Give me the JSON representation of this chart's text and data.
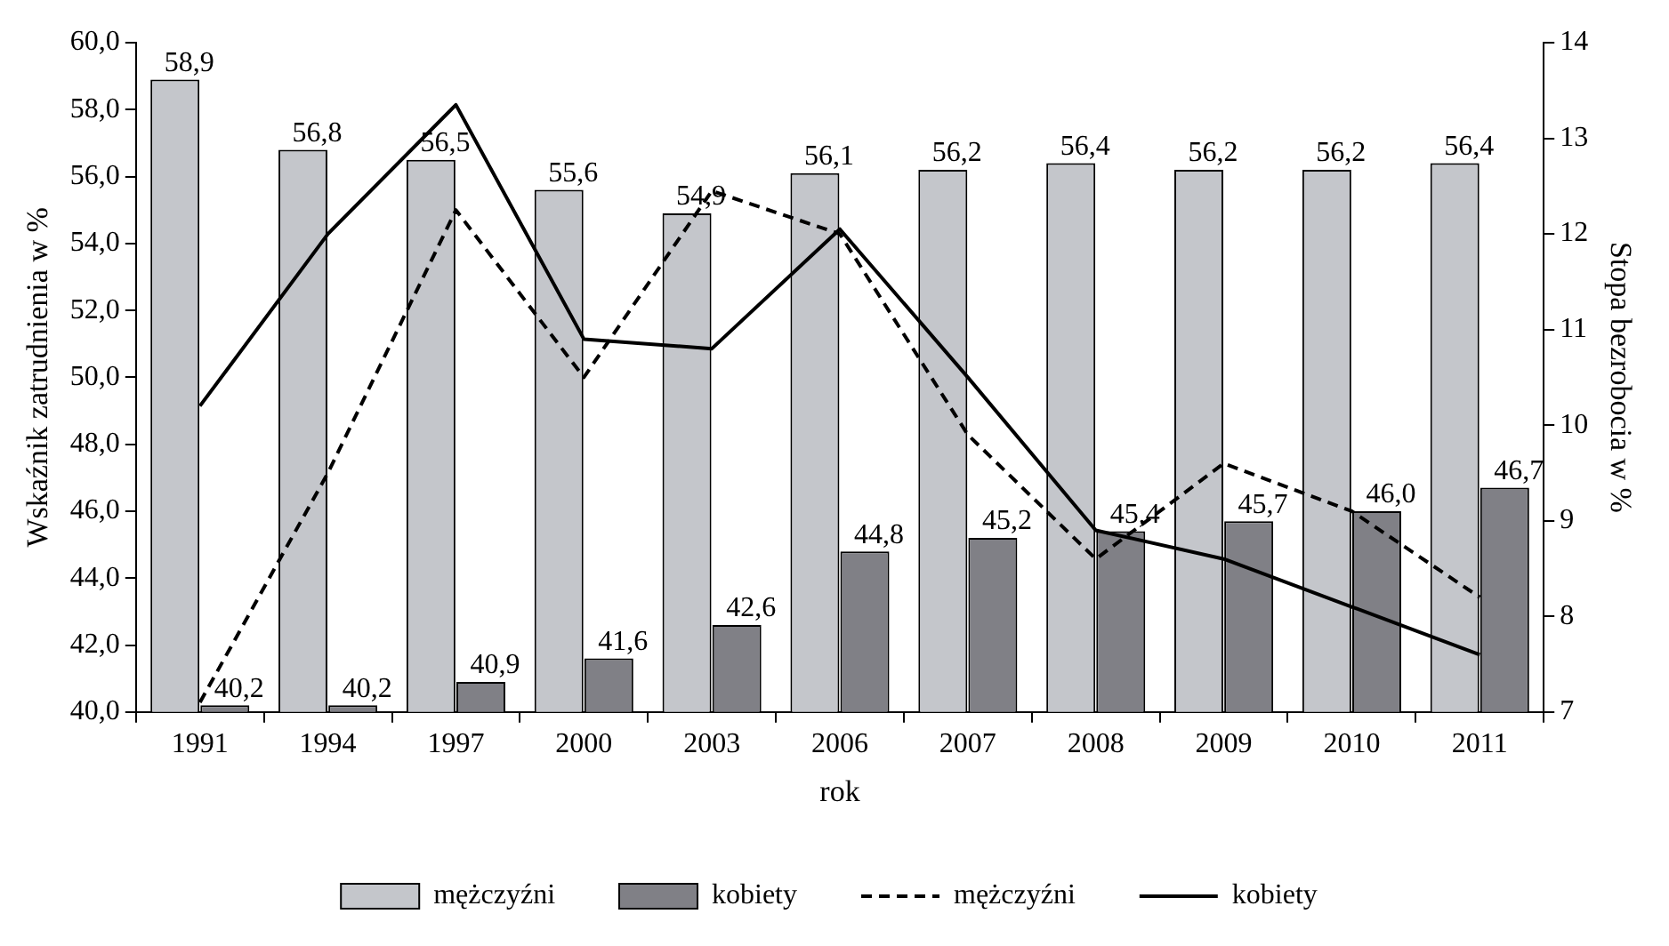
{
  "chart_data": {
    "type": "bar",
    "xlabel": "rok",
    "ylabel": "Wskaźnik zatrudnienia w %",
    "y2label": "Stopa bezrobocia w %",
    "categories": [
      "1991",
      "1994",
      "1997",
      "2000",
      "2003",
      "2006",
      "2007",
      "2008",
      "2009",
      "2010",
      "2011"
    ],
    "series": [
      {
        "name": "mężczyźni",
        "color": "#c4c6cb",
        "values": [
          58.9,
          56.8,
          56.5,
          55.6,
          54.9,
          56.1,
          56.2,
          56.4,
          56.2,
          56.2,
          56.4
        ],
        "value_labels": [
          "58,9",
          "56,8",
          "56,5",
          "55,6",
          "54,9",
          "56,1",
          "56,2",
          "56,4",
          "56,2",
          "56,2",
          "56,4"
        ]
      },
      {
        "name": "kobiety",
        "color": "#808086",
        "values": [
          40.2,
          40.2,
          40.9,
          41.6,
          42.6,
          44.8,
          45.2,
          45.4,
          45.7,
          46.0,
          46.7
        ],
        "value_labels": [
          "40,2",
          "40,2",
          "40,9",
          "41,6",
          "42,6",
          "44,8",
          "45,2",
          "45,4",
          "45,7",
          "46,0",
          "46,7"
        ]
      },
      {
        "name": "mężczyźni",
        "type": "line",
        "axis": "y2",
        "line_style": "dashed",
        "color": "#000000",
        "values": [
          7.1,
          9.5,
          12.25,
          10.5,
          12.45,
          12.0,
          9.9,
          8.6,
          9.6,
          9.1,
          8.2
        ]
      },
      {
        "name": "kobiety",
        "type": "line",
        "axis": "y2",
        "line_style": "solid",
        "color": "#000000",
        "values": [
          10.2,
          12.0,
          13.35,
          10.9,
          10.8,
          12.05,
          10.5,
          8.9,
          8.6,
          8.1,
          7.6
        ]
      }
    ],
    "ylim": [
      40,
      60
    ],
    "yticks": [
      {
        "value": 40,
        "label": "40,0"
      },
      {
        "value": 42,
        "label": "42,0"
      },
      {
        "value": 44,
        "label": "44,0"
      },
      {
        "value": 46,
        "label": "46,0"
      },
      {
        "value": 48,
        "label": "48,0"
      },
      {
        "value": 50,
        "label": "50,0"
      },
      {
        "value": 52,
        "label": "52,0"
      },
      {
        "value": 54,
        "label": "54,0"
      },
      {
        "value": 56,
        "label": "56,0"
      },
      {
        "value": 58,
        "label": "58,0"
      },
      {
        "value": 60,
        "label": "60,0"
      }
    ],
    "y2lim": [
      7,
      14
    ],
    "y2ticks": [
      7,
      8,
      9,
      10,
      11,
      12,
      13,
      14
    ],
    "legend": "bottom",
    "grid": false,
    "marker": "none"
  }
}
